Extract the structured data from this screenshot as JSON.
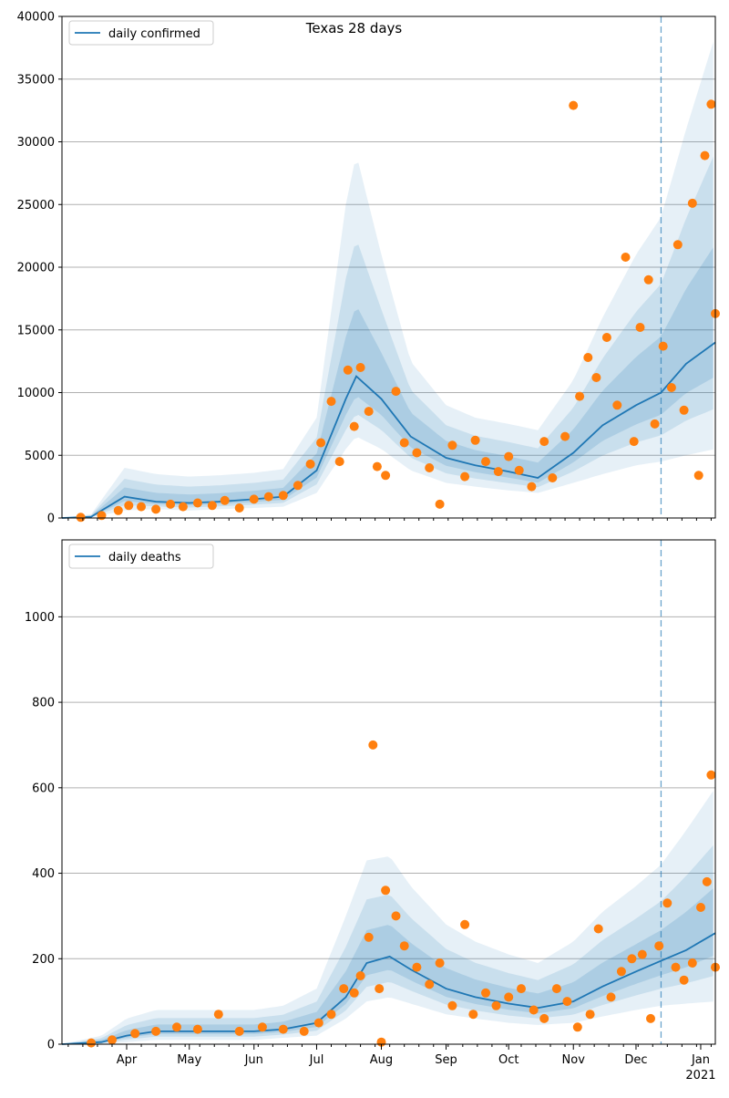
{
  "chart_data": [
    {
      "type": "line",
      "title": "Texas 28 days",
      "xlabel": "",
      "ylabel": "",
      "ylim": [
        0,
        40000
      ],
      "yticks": [
        0,
        5000,
        10000,
        15000,
        20000,
        25000,
        30000,
        35000,
        40000
      ],
      "grid": "horizontal",
      "legend_placement": "top-left",
      "x_start": "2020-03-01",
      "x_end": "2021-01-08",
      "forecast_start": "2020-12-13",
      "colors": {
        "line": "#1f77b4",
        "observed": "#ff7f0e",
        "band": "#1f77b4"
      },
      "series": [
        {
          "name": "daily confirmed",
          "type": "line",
          "x": [
            "2020-03-01",
            "2020-03-15",
            "2020-03-31",
            "2020-04-15",
            "2020-05-01",
            "2020-05-15",
            "2020-06-01",
            "2020-06-15",
            "2020-07-01",
            "2020-07-15",
            "2020-07-20",
            "2020-08-01",
            "2020-08-15",
            "2020-09-01",
            "2020-09-15",
            "2020-10-01",
            "2020-10-15",
            "2020-11-01",
            "2020-11-15",
            "2020-12-01",
            "2020-12-13",
            "2020-12-25",
            "2021-01-08"
          ],
          "y": [
            0,
            100,
            1700,
            1300,
            1200,
            1300,
            1500,
            1700,
            3800,
            9500,
            11300,
            9500,
            6500,
            4800,
            4200,
            3700,
            3200,
            5200,
            7400,
            9000,
            10000,
            12300,
            14000
          ]
        },
        {
          "name": "",
          "type": "interval",
          "x": [
            "2020-03-01",
            "2020-03-15",
            "2020-03-31",
            "2020-04-15",
            "2020-05-01",
            "2020-05-15",
            "2020-06-01",
            "2020-06-15",
            "2020-07-01",
            "2020-07-15",
            "2020-07-20",
            "2020-08-01",
            "2020-08-15",
            "2020-09-01",
            "2020-09-15",
            "2020-10-01",
            "2020-10-15",
            "2020-11-01",
            "2020-11-15",
            "2020-12-01",
            "2020-12-13",
            "2020-12-25",
            "2021-01-08"
          ],
          "y_low": [
            0,
            50,
            600,
            700,
            600,
            700,
            800,
            900,
            2000,
            5500,
            6500,
            5500,
            3800,
            2800,
            2500,
            2200,
            2000,
            2800,
            3500,
            4200,
            4500,
            5000,
            5500
          ],
          "y_high": [
            0,
            300,
            4000,
            3500,
            3300,
            3400,
            3600,
            3900,
            8000,
            25000,
            29000,
            21000,
            12500,
            9000,
            8000,
            7500,
            7000,
            11000,
            16000,
            21000,
            24000,
            31000,
            38500
          ]
        },
        {
          "name": "",
          "type": "scatter",
          "x": [
            "2020-03-10",
            "2020-03-20",
            "2020-03-28",
            "2020-04-02",
            "2020-04-08",
            "2020-04-15",
            "2020-04-22",
            "2020-04-28",
            "2020-05-05",
            "2020-05-12",
            "2020-05-18",
            "2020-05-25",
            "2020-06-01",
            "2020-06-08",
            "2020-06-15",
            "2020-06-22",
            "2020-06-28",
            "2020-07-03",
            "2020-07-08",
            "2020-07-12",
            "2020-07-16",
            "2020-07-19",
            "2020-07-22",
            "2020-07-26",
            "2020-07-30",
            "2020-08-03",
            "2020-08-08",
            "2020-08-12",
            "2020-08-18",
            "2020-08-24",
            "2020-08-29",
            "2020-09-04",
            "2020-09-10",
            "2020-09-15",
            "2020-09-20",
            "2020-09-26",
            "2020-10-01",
            "2020-10-06",
            "2020-10-12",
            "2020-10-18",
            "2020-10-22",
            "2020-10-28",
            "2020-11-01",
            "2020-11-04",
            "2020-11-08",
            "2020-11-12",
            "2020-11-17",
            "2020-11-22",
            "2020-11-26",
            "2020-11-30",
            "2020-12-03",
            "2020-12-07",
            "2020-12-10",
            "2020-12-14",
            "2020-12-18",
            "2020-12-21",
            "2020-12-24",
            "2020-12-28",
            "2020-12-31",
            "2021-01-03",
            "2021-01-06",
            "2021-01-08"
          ],
          "y": [
            50,
            200,
            600,
            1000,
            900,
            700,
            1100,
            900,
            1200,
            1000,
            1400,
            800,
            1500,
            1700,
            1800,
            2600,
            4300,
            6000,
            9300,
            4500,
            11800,
            7300,
            12000,
            8500,
            4100,
            3400,
            10100,
            6000,
            5200,
            4000,
            1100,
            5800,
            3300,
            6200,
            4500,
            3700,
            4900,
            3800,
            2500,
            6100,
            3200,
            6500,
            32900,
            9700,
            12800,
            11200,
            14400,
            9000,
            20800,
            6100,
            15200,
            19000,
            7500,
            13700,
            10400,
            21800,
            8600,
            25100,
            3400,
            28900,
            33000,
            16300
          ]
        }
      ]
    },
    {
      "type": "line",
      "title": "",
      "xlabel": "",
      "ylabel": "",
      "ylim": [
        0,
        1180
      ],
      "yticks": [
        0,
        200,
        400,
        600,
        800,
        1000
      ],
      "grid": "horizontal",
      "legend_placement": "top-left",
      "x_start": "2020-03-01",
      "x_end": "2021-01-08",
      "forecast_start": "2020-12-13",
      "xtick_labels": [
        "Apr",
        "May",
        "Jun",
        "Jul",
        "Aug",
        "Sep",
        "Oct",
        "Nov",
        "Dec",
        "Jan"
      ],
      "xtick_dates": [
        "2020-04-01",
        "2020-05-01",
        "2020-06-01",
        "2020-07-01",
        "2020-08-01",
        "2020-09-01",
        "2020-10-01",
        "2020-11-01",
        "2020-12-01",
        "2021-01-01"
      ],
      "year_label": "2021",
      "colors": {
        "line": "#1f77b4",
        "observed": "#ff7f0e",
        "band": "#1f77b4"
      },
      "series": [
        {
          "name": "daily deaths",
          "type": "line",
          "x": [
            "2020-03-01",
            "2020-03-20",
            "2020-04-01",
            "2020-04-15",
            "2020-05-01",
            "2020-05-15",
            "2020-06-01",
            "2020-06-15",
            "2020-07-01",
            "2020-07-15",
            "2020-07-25",
            "2020-08-05",
            "2020-08-15",
            "2020-09-01",
            "2020-09-15",
            "2020-10-01",
            "2020-10-15",
            "2020-11-01",
            "2020-11-15",
            "2020-12-01",
            "2020-12-13",
            "2020-12-25",
            "2021-01-08"
          ],
          "y": [
            0,
            5,
            20,
            30,
            30,
            30,
            30,
            35,
            50,
            110,
            190,
            205,
            175,
            130,
            110,
            95,
            85,
            100,
            135,
            170,
            195,
            220,
            260
          ]
        },
        {
          "name": "",
          "type": "interval",
          "x": [
            "2020-03-01",
            "2020-03-20",
            "2020-04-01",
            "2020-04-15",
            "2020-05-01",
            "2020-05-15",
            "2020-06-01",
            "2020-06-15",
            "2020-07-01",
            "2020-07-15",
            "2020-07-25",
            "2020-08-05",
            "2020-08-15",
            "2020-09-01",
            "2020-09-15",
            "2020-10-01",
            "2020-10-15",
            "2020-11-01",
            "2020-11-15",
            "2020-12-01",
            "2020-12-13",
            "2020-12-25",
            "2021-01-08"
          ],
          "y_low": [
            0,
            0,
            5,
            10,
            10,
            10,
            10,
            15,
            20,
            60,
            100,
            110,
            95,
            70,
            60,
            50,
            45,
            50,
            65,
            80,
            90,
            95,
            100
          ],
          "y_high": [
            0,
            20,
            60,
            80,
            80,
            80,
            80,
            90,
            130,
            300,
            430,
            440,
            370,
            280,
            240,
            210,
            190,
            240,
            310,
            370,
            420,
            500,
            600
          ]
        },
        {
          "name": "",
          "type": "scatter",
          "x": [
            "2020-03-15",
            "2020-03-25",
            "2020-04-05",
            "2020-04-15",
            "2020-04-25",
            "2020-05-05",
            "2020-05-15",
            "2020-05-25",
            "2020-06-05",
            "2020-06-15",
            "2020-06-25",
            "2020-07-02",
            "2020-07-08",
            "2020-07-14",
            "2020-07-19",
            "2020-07-22",
            "2020-07-26",
            "2020-07-28",
            "2020-07-31",
            "2020-08-01",
            "2020-08-03",
            "2020-08-08",
            "2020-08-12",
            "2020-08-18",
            "2020-08-24",
            "2020-08-29",
            "2020-09-04",
            "2020-09-10",
            "2020-09-14",
            "2020-09-20",
            "2020-09-25",
            "2020-10-01",
            "2020-10-07",
            "2020-10-13",
            "2020-10-18",
            "2020-10-24",
            "2020-10-29",
            "2020-11-03",
            "2020-11-09",
            "2020-11-13",
            "2020-11-19",
            "2020-11-24",
            "2020-11-29",
            "2020-12-04",
            "2020-12-08",
            "2020-12-12",
            "2020-12-16",
            "2020-12-20",
            "2020-12-24",
            "2020-12-28",
            "2021-01-01",
            "2021-01-04",
            "2021-01-06",
            "2021-01-08"
          ],
          "y": [
            3,
            10,
            25,
            30,
            40,
            35,
            70,
            30,
            40,
            35,
            30,
            50,
            70,
            130,
            120,
            160,
            250,
            700,
            130,
            5,
            360,
            300,
            230,
            180,
            140,
            190,
            90,
            280,
            70,
            120,
            90,
            110,
            130,
            80,
            60,
            130,
            100,
            40,
            70,
            270,
            110,
            170,
            200,
            210,
            60,
            230,
            330,
            180,
            150,
            190,
            320,
            380,
            630,
            180
          ]
        }
      ]
    }
  ]
}
